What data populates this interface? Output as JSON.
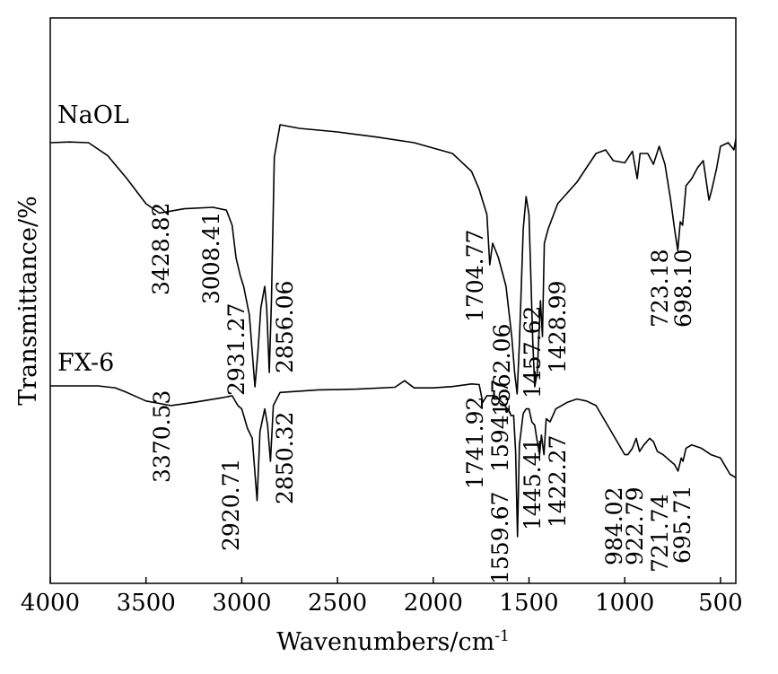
{
  "chart_data": {
    "type": "line",
    "title": "",
    "xlabel": "Wavenumbers/cm",
    "xlabel_superscript": "-1",
    "ylabel": "Transmittance/%",
    "xlim": [
      4000,
      420
    ],
    "x_reversed": true,
    "y_ticks_shown": false,
    "grid": false,
    "x_ticks": [
      4000,
      3500,
      3000,
      2500,
      2000,
      1500,
      1000,
      500
    ],
    "series": [
      {
        "name": "NaOL",
        "points": [
          [
            4000,
            2.0
          ],
          [
            3900,
            2.1
          ],
          [
            3800,
            2.0
          ],
          [
            3700,
            0.2
          ],
          [
            3600,
            -3.0
          ],
          [
            3500,
            -6.5
          ],
          [
            3430,
            -7.8
          ],
          [
            3300,
            -7.2
          ],
          [
            3150,
            -7.0
          ],
          [
            3080,
            -7.4
          ],
          [
            3050,
            -9.5
          ],
          [
            3030,
            -14
          ],
          [
            3008,
            -16.5
          ],
          [
            2990,
            -18
          ],
          [
            2960,
            -22
          ],
          [
            2931,
            -32
          ],
          [
            2915,
            -27
          ],
          [
            2900,
            -21
          ],
          [
            2880,
            -18
          ],
          [
            2870,
            -21
          ],
          [
            2856,
            -30
          ],
          [
            2845,
            -20
          ],
          [
            2830,
            0
          ],
          [
            2800,
            4.5
          ],
          [
            2700,
            4.0
          ],
          [
            2500,
            3.5
          ],
          [
            2300,
            2.8
          ],
          [
            2100,
            2.0
          ],
          [
            1900,
            0.5
          ],
          [
            1800,
            -2.0
          ],
          [
            1760,
            -4.5
          ],
          [
            1720,
            -8.0
          ],
          [
            1705,
            -15
          ],
          [
            1690,
            -12
          ],
          [
            1660,
            -14
          ],
          [
            1620,
            -18
          ],
          [
            1590,
            -25
          ],
          [
            1575,
            -30
          ],
          [
            1562,
            -33
          ],
          [
            1550,
            -26
          ],
          [
            1530,
            -10
          ],
          [
            1515,
            -5.5
          ],
          [
            1500,
            -8
          ],
          [
            1480,
            -26
          ],
          [
            1470,
            -32
          ],
          [
            1457,
            -30
          ],
          [
            1440,
            -20
          ],
          [
            1430,
            -25
          ],
          [
            1420,
            -12
          ],
          [
            1400,
            -10
          ],
          [
            1350,
            -6.5
          ],
          [
            1300,
            -5.0
          ],
          [
            1250,
            -3.5
          ],
          [
            1200,
            -1.5
          ],
          [
            1150,
            0.5
          ],
          [
            1100,
            1.0
          ],
          [
            1060,
            -0.5
          ],
          [
            1000,
            -0.8
          ],
          [
            960,
            0.8
          ],
          [
            935,
            -3.0
          ],
          [
            920,
            0.5
          ],
          [
            880,
            0.5
          ],
          [
            850,
            -1.0
          ],
          [
            820,
            1.5
          ],
          [
            790,
            -1.0
          ],
          [
            760,
            -6.0
          ],
          [
            740,
            -10.0
          ],
          [
            723,
            -13.0
          ],
          [
            710,
            -9.0
          ],
          [
            698,
            -9.5
          ],
          [
            680,
            -4.0
          ],
          [
            650,
            -3.0
          ],
          [
            620,
            -1.5
          ],
          [
            590,
            -0.5
          ],
          [
            560,
            -6.0
          ],
          [
            545,
            -4.5
          ],
          [
            520,
            -1.5
          ],
          [
            500,
            1.5
          ],
          [
            460,
            2.0
          ],
          [
            430,
            1.0
          ],
          [
            420,
            2.5
          ]
        ]
      },
      {
        "name": "FX-6",
        "points": [
          [
            4000,
            0.0
          ],
          [
            3750,
            0.0
          ],
          [
            3660,
            -0.3
          ],
          [
            3600,
            -1.0
          ],
          [
            3500,
            -2.3
          ],
          [
            3370,
            -3.0
          ],
          [
            3250,
            -2.5
          ],
          [
            3100,
            -1.8
          ],
          [
            3050,
            -1.5
          ],
          [
            3020,
            -3.0
          ],
          [
            3000,
            -3.5
          ],
          [
            2970,
            -6.5
          ],
          [
            2945,
            -8.0
          ],
          [
            2920,
            -17.5
          ],
          [
            2905,
            -7.0
          ],
          [
            2880,
            -3.5
          ],
          [
            2865,
            -6.0
          ],
          [
            2850,
            -11.5
          ],
          [
            2835,
            -3.0
          ],
          [
            2800,
            -1.0
          ],
          [
            2600,
            -0.6
          ],
          [
            2400,
            -0.5
          ],
          [
            2200,
            -0.2
          ],
          [
            2150,
            0.8
          ],
          [
            2100,
            -0.3
          ],
          [
            2000,
            -0.3
          ],
          [
            1900,
            -0.1
          ],
          [
            1800,
            0.3
          ],
          [
            1760,
            0.2
          ],
          [
            1742,
            -2.5
          ],
          [
            1720,
            -1.5
          ],
          [
            1680,
            -1.5
          ],
          [
            1640,
            -2.5
          ],
          [
            1600,
            -4.0
          ],
          [
            1595,
            -4.5
          ],
          [
            1580,
            -4.5
          ],
          [
            1570,
            -10
          ],
          [
            1560,
            -23
          ],
          [
            1550,
            -9.0
          ],
          [
            1530,
            -4.2
          ],
          [
            1515,
            -3.5
          ],
          [
            1500,
            -3.5
          ],
          [
            1485,
            -5.5
          ],
          [
            1470,
            -6.0
          ],
          [
            1460,
            -8.0
          ],
          [
            1445,
            -10.5
          ],
          [
            1435,
            -7.5
          ],
          [
            1422,
            -10.5
          ],
          [
            1410,
            -5.0
          ],
          [
            1390,
            -5.5
          ],
          [
            1360,
            -3.5
          ],
          [
            1300,
            -2.5
          ],
          [
            1250,
            -2.0
          ],
          [
            1200,
            -2.3
          ],
          [
            1150,
            -3.0
          ],
          [
            1100,
            -5.5
          ],
          [
            1050,
            -8.0
          ],
          [
            1000,
            -10.5
          ],
          [
            984,
            -10.5
          ],
          [
            960,
            -9.5
          ],
          [
            940,
            -8.0
          ],
          [
            923,
            -10.0
          ],
          [
            900,
            -9.0
          ],
          [
            870,
            -8.0
          ],
          [
            850,
            -8.5
          ],
          [
            830,
            -10.0
          ],
          [
            800,
            -10.5
          ],
          [
            780,
            -11.0
          ],
          [
            760,
            -11.5
          ],
          [
            740,
            -12.0
          ],
          [
            722,
            -13.0
          ],
          [
            705,
            -11.0
          ],
          [
            696,
            -11.5
          ],
          [
            680,
            -9.5
          ],
          [
            650,
            -9.0
          ],
          [
            600,
            -9.5
          ],
          [
            550,
            -10.5
          ],
          [
            500,
            -11.0
          ],
          [
            450,
            -13.5
          ],
          [
            420,
            -14.0
          ]
        ]
      }
    ],
    "annotations": [
      {
        "label": "3428.82",
        "series": "NaOL",
        "x": 3428.82
      },
      {
        "label": "3008.41",
        "series": "NaOL",
        "x": 3008.41
      },
      {
        "label": "2931.27",
        "series": "NaOL",
        "x": 2931.27
      },
      {
        "label": "2856.06",
        "series": "NaOL",
        "x": 2856.06
      },
      {
        "label": "1704.77",
        "series": "NaOL",
        "x": 1704.77
      },
      {
        "label": "1562.06",
        "series": "NaOL",
        "x": 1562.06
      },
      {
        "label": "1457.62",
        "series": "NaOL",
        "x": 1457.62
      },
      {
        "label": "1428.99",
        "series": "NaOL",
        "x": 1428.99
      },
      {
        "label": "723.18",
        "series": "NaOL",
        "x": 723.18
      },
      {
        "label": "698.10",
        "series": "NaOL",
        "x": 698.1
      },
      {
        "label": "3370.53",
        "series": "FX-6",
        "x": 3370.53
      },
      {
        "label": "2920.71",
        "series": "FX-6",
        "x": 2920.71
      },
      {
        "label": "2850.32",
        "series": "FX-6",
        "x": 2850.32
      },
      {
        "label": "1741.92",
        "series": "FX-6",
        "x": 1741.92
      },
      {
        "label": "1594.87",
        "series": "FX-6",
        "x": 1594.87
      },
      {
        "label": "1559.67",
        "series": "FX-6",
        "x": 1559.67
      },
      {
        "label": "1445.41",
        "series": "FX-6",
        "x": 1445.41
      },
      {
        "label": "1422.27",
        "series": "FX-6",
        "x": 1422.27
      },
      {
        "label": "984.02",
        "series": "FX-6",
        "x": 984.02
      },
      {
        "label": "922.79",
        "series": "FX-6",
        "x": 922.79
      },
      {
        "label": "721.74",
        "series": "FX-6",
        "x": 721.74
      },
      {
        "label": "695.71",
        "series": "FX-6",
        "x": 695.71
      }
    ]
  }
}
